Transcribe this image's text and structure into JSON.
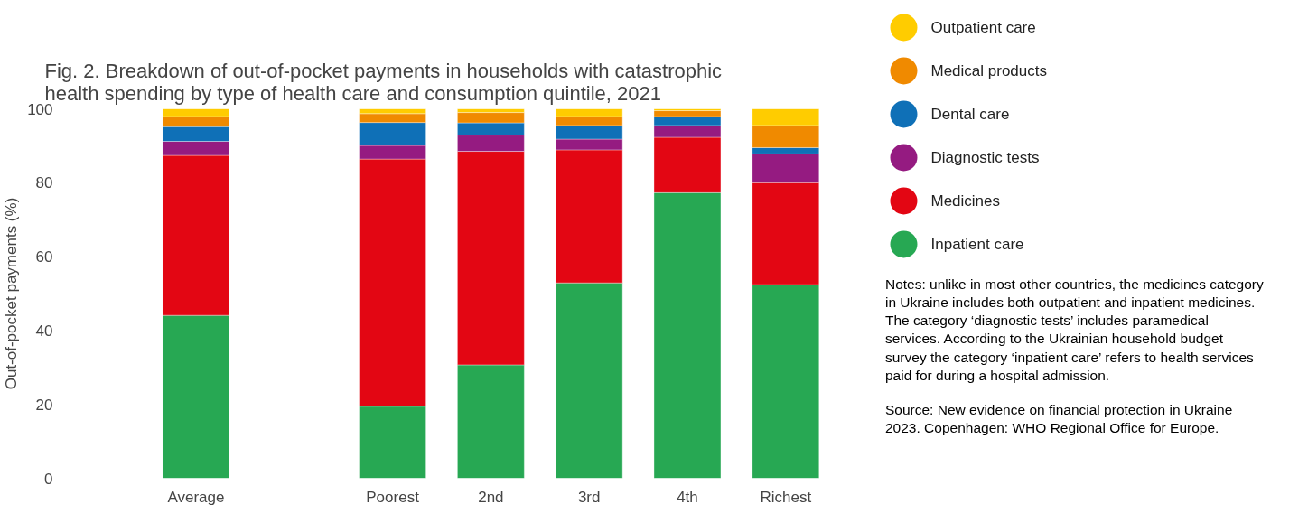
{
  "chart_data": {
    "type": "bar",
    "stacked": true,
    "title": "Fig. 2. Breakdown of out-of-pocket payments in households with catastrophic\nhealth spending by type of health care and consumption quintile, 2021",
    "ylabel": "Out-of-pocket payments (%)",
    "categories": [
      "Average",
      null,
      "Poorest",
      "2nd",
      "3rd",
      "4th",
      "Richest"
    ],
    "series": [
      {
        "name": "Inpatient care",
        "color": "#27a853",
        "values": [
          44.1,
          null,
          19.5,
          30.7,
          52.9,
          77.3,
          52.4
        ]
      },
      {
        "name": "Medicines",
        "color": "#e30613",
        "values": [
          43.3,
          null,
          66.9,
          57.8,
          36.0,
          15.0,
          27.6
        ]
      },
      {
        "name": "Diagnostic tests",
        "color": "#951b81",
        "values": [
          3.8,
          null,
          3.7,
          4.4,
          2.9,
          3.2,
          7.8
        ]
      },
      {
        "name": "Dental care",
        "color": "#0f70b7",
        "values": [
          4.0,
          null,
          6.2,
          3.3,
          3.7,
          2.4,
          1.7
        ]
      },
      {
        "name": "Medical products",
        "color": "#f08a00",
        "values": [
          2.7,
          null,
          2.4,
          2.8,
          2.4,
          1.6,
          6.0
        ]
      },
      {
        "name": "Outpatient care",
        "color": "#ffcc00",
        "values": [
          2.1,
          null,
          1.3,
          1.0,
          2.1,
          0.5,
          4.5
        ]
      }
    ],
    "ylim": [
      0,
      100
    ],
    "yticks": [
      0,
      20,
      40,
      60,
      80,
      100
    ],
    "grid": false,
    "legend": "top right",
    "annotations": [
      "Notes: unlike in most other countries, the medicines category in Ukraine includes both outpatient and inpatient medicines. The category ‘diagnostic tests’ includes paramedical services. According to the Ukrainian household budget survey the category ‘inpatient care’ refers to health services paid for during a hospital admission.",
      "Source: New evidence on financial protection in Ukraine 2023. Copenhagen: WHO Regional Office for Europe."
    ]
  }
}
